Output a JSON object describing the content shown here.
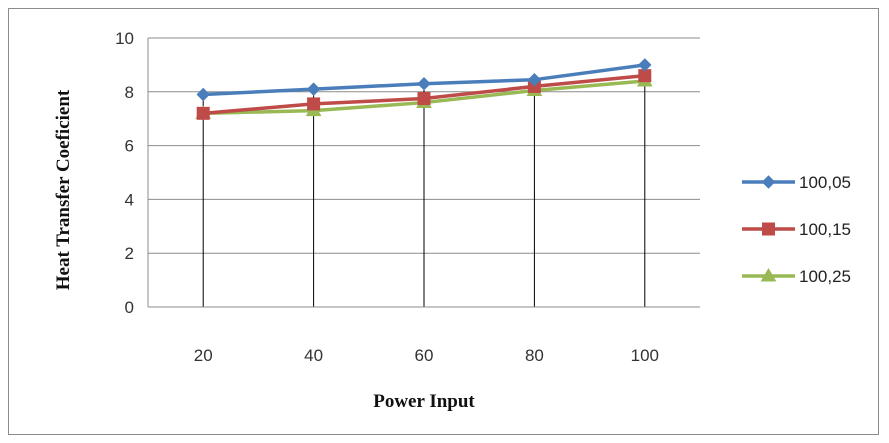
{
  "chart_data": {
    "type": "line",
    "title": "",
    "xlabel": "Power Input",
    "ylabel": "Heat Transfer Coeficient",
    "categories": [
      "20",
      "40",
      "60",
      "80",
      "100"
    ],
    "ylim": [
      0,
      10
    ],
    "yticks": [
      "0",
      "2",
      "4",
      "6",
      "8",
      "10"
    ],
    "grid": "horizontal",
    "legend_position": "right",
    "series": [
      {
        "name": "100,05",
        "values": [
          7.9,
          8.1,
          8.3,
          8.45,
          9.0
        ],
        "color": "#4a7ebb",
        "marker": "diamond"
      },
      {
        "name": "100,15",
        "values": [
          7.2,
          7.55,
          7.75,
          8.2,
          8.6
        ],
        "color": "#be4b48",
        "marker": "square"
      },
      {
        "name": "100,25",
        "values": [
          7.2,
          7.3,
          7.6,
          8.05,
          8.4
        ],
        "color": "#98b954",
        "marker": "triangle"
      }
    ]
  }
}
